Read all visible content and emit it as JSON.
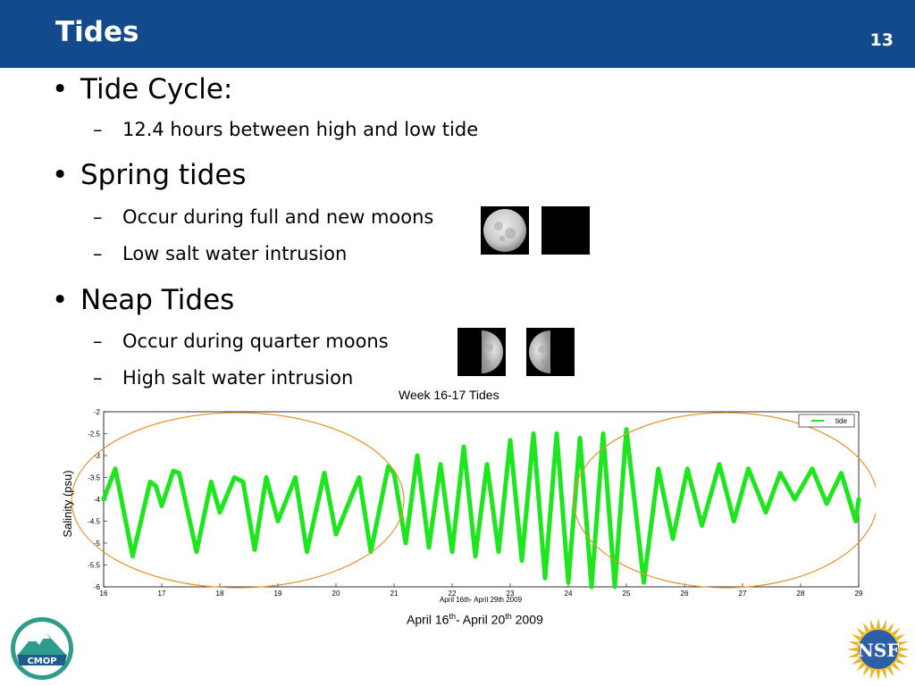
{
  "header": {
    "title": "Tides",
    "slide_number": "13"
  },
  "bullets": [
    {
      "text": "Tide Cycle:",
      "sub": [
        "12.4 hours between high and low tide"
      ]
    },
    {
      "text": "Spring tides",
      "sub": [
        "Occur during full and new moons",
        "Low salt water intrusion"
      ]
    },
    {
      "text": "Neap Tides",
      "sub": [
        "Occur during quarter moons",
        "High salt water intrusion"
      ]
    }
  ],
  "bullet_glyph": "•",
  "dash_glyph": "–",
  "logos": {
    "cmop": "CMOP",
    "nsf": "NSF"
  },
  "caption": {
    "a": "April 16",
    "a_sup": "th",
    "b": "- April 20",
    "b_sup": "th",
    "c": " 2009"
  },
  "chart_data": {
    "type": "line",
    "title": "Week 16-17 Tides",
    "xlabel": "April 16th- April 29th 2009",
    "ylabel": "Salinity (psu)",
    "xlim": [
      16,
      29
    ],
    "ylim": [
      -6,
      -2
    ],
    "xticks": [
      "16",
      "17",
      "18",
      "19",
      "20",
      "21",
      "22",
      "23",
      "24",
      "25",
      "26",
      "27",
      "28",
      "29"
    ],
    "yticks": [
      "-2",
      "-2.5",
      "-3",
      "-3.5",
      "-4",
      "-4.5",
      "-5",
      "-5.5",
      "-6"
    ],
    "legend": {
      "label": "tide",
      "position": "top-right"
    },
    "series_color": "#1ee61e",
    "highlight_color": "#e8932a",
    "series": [
      {
        "name": "tide",
        "x": [
          16.0,
          16.2,
          16.5,
          16.8,
          16.9,
          17.0,
          17.2,
          17.3,
          17.6,
          17.85,
          18.0,
          18.25,
          18.4,
          18.6,
          18.8,
          19.0,
          19.3,
          19.5,
          19.8,
          20.0,
          20.4,
          20.6,
          20.9,
          21.0,
          21.2,
          21.4,
          21.6,
          21.8,
          22.0,
          22.2,
          22.4,
          22.6,
          22.8,
          23.0,
          23.2,
          23.4,
          23.6,
          23.8,
          24.0,
          24.2,
          24.4,
          24.6,
          24.8,
          25.0,
          25.3,
          25.55,
          25.8,
          26.05,
          26.3,
          26.6,
          26.85,
          27.1,
          27.4,
          27.65,
          27.9,
          28.2,
          28.45,
          28.7,
          28.95,
          29.0
        ],
        "y": [
          -4.0,
          -3.3,
          -5.3,
          -3.6,
          -3.7,
          -4.15,
          -3.35,
          -3.4,
          -5.2,
          -3.6,
          -4.3,
          -3.5,
          -3.6,
          -5.15,
          -3.5,
          -4.5,
          -3.5,
          -5.2,
          -3.4,
          -4.8,
          -3.5,
          -5.2,
          -3.25,
          -3.4,
          -5.0,
          -3.0,
          -5.1,
          -3.2,
          -5.2,
          -2.8,
          -5.3,
          -3.2,
          -5.2,
          -2.65,
          -5.4,
          -2.5,
          -5.8,
          -2.5,
          -5.9,
          -2.6,
          -6.0,
          -2.5,
          -6.0,
          -2.4,
          -5.9,
          -3.3,
          -4.9,
          -3.3,
          -4.6,
          -3.2,
          -4.5,
          -3.3,
          -4.3,
          -3.4,
          -4.0,
          -3.3,
          -4.1,
          -3.4,
          -4.5,
          -4.0
        ]
      }
    ]
  }
}
